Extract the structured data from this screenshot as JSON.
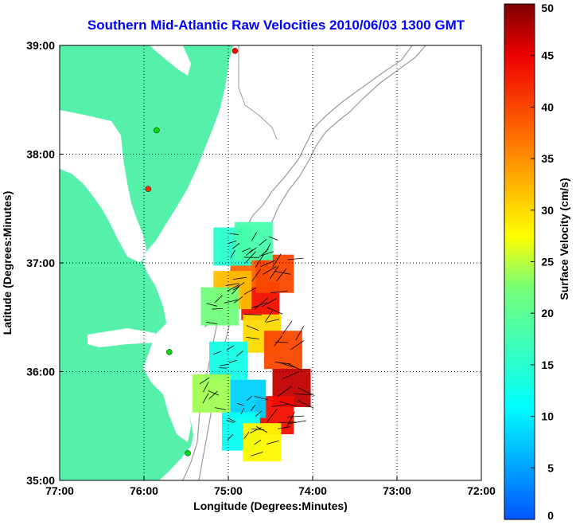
{
  "chart_data": {
    "type": "heatmap",
    "title": "Southern Mid-Atlantic Raw Velocities 2010/06/03 1300 GMT",
    "xlabel": "Longitude (Degrees:Minutes)",
    "ylabel": "Latitude (Degrees:Minutes)",
    "xlim": [
      -77,
      -72
    ],
    "ylim": [
      35,
      39
    ],
    "x_ticks": [
      -77,
      -76,
      -75,
      -74,
      -73,
      -72
    ],
    "x_tick_labels": [
      "77:00",
      "76:00",
      "75:00",
      "74:00",
      "73:00",
      "72:00"
    ],
    "y_ticks": [
      35,
      36,
      37,
      38,
      39
    ],
    "y_tick_labels": [
      "35:00",
      "36:00",
      "37:00",
      "38:00",
      "39:00"
    ],
    "grid": true,
    "colorbar": {
      "label": "Surface Velocity (cm/s)",
      "min": 0,
      "max": 50,
      "ticks": [
        0,
        5,
        10,
        15,
        20,
        25,
        30,
        35,
        40,
        45,
        50
      ],
      "tick_labels": [
        "0",
        "5",
        "10",
        "15",
        "20",
        "25",
        "30",
        "35",
        "40",
        "45",
        "50"
      ]
    },
    "land_color": "#55f0aa",
    "velocity_regions": [
      {
        "lon": -74.62,
        "lat": 36.65,
        "speed": 44
      },
      {
        "lon": -74.75,
        "lat": 36.95,
        "speed": 38
      },
      {
        "lon": -74.45,
        "lat": 36.9,
        "speed": 40
      },
      {
        "lon": -74.95,
        "lat": 36.75,
        "speed": 32
      },
      {
        "lon": -75.1,
        "lat": 36.6,
        "speed": 22
      },
      {
        "lon": -74.6,
        "lat": 36.35,
        "speed": 30
      },
      {
        "lon": -74.35,
        "lat": 36.2,
        "speed": 40
      },
      {
        "lon": -74.25,
        "lat": 35.85,
        "speed": 47
      },
      {
        "lon": -74.45,
        "lat": 35.6,
        "speed": 44
      },
      {
        "lon": -74.78,
        "lat": 35.75,
        "speed": 8
      },
      {
        "lon": -75.0,
        "lat": 36.1,
        "speed": 13
      },
      {
        "lon": -74.85,
        "lat": 35.45,
        "speed": 12
      },
      {
        "lon": -75.2,
        "lat": 35.8,
        "speed": 24
      },
      {
        "lon": -74.6,
        "lat": 35.35,
        "speed": 28
      },
      {
        "lon": -74.95,
        "lat": 37.15,
        "speed": 15
      },
      {
        "lon": -74.7,
        "lat": 37.2,
        "speed": 18
      }
    ],
    "sites": [
      {
        "lon": -74.92,
        "lat": 38.95,
        "color": "#ff0000"
      },
      {
        "lon": -75.85,
        "lat": 38.22,
        "color": "#00dd00"
      },
      {
        "lon": -75.95,
        "lat": 37.68,
        "color": "#ff3300"
      },
      {
        "lon": -75.7,
        "lat": 36.18,
        "color": "#00dd00"
      },
      {
        "lon": -75.48,
        "lat": 35.25,
        "color": "#00dd00"
      }
    ]
  }
}
